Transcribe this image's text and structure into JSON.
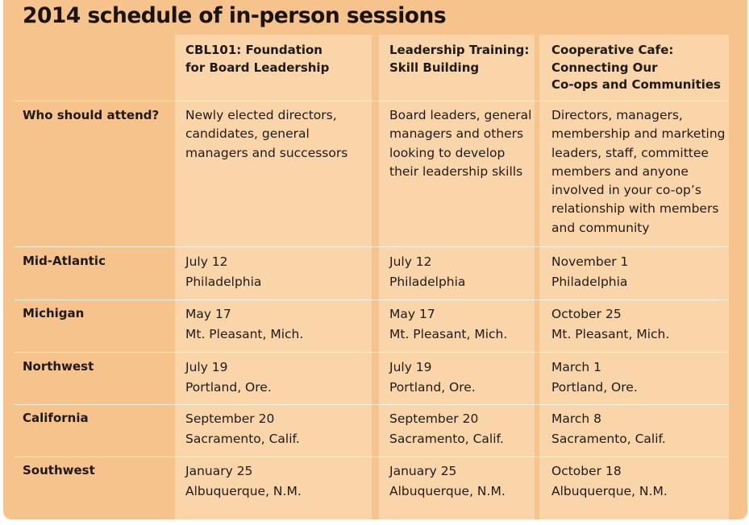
{
  "title": "2014 schedule of in-person sessions",
  "columns": [
    {
      "line1": "CBL101:  Foundation",
      "line2": "for Board Leadership",
      "line3": ""
    },
    {
      "line1": "Leadership Training:",
      "line2": "Skill Building",
      "line3": ""
    },
    {
      "line1": "Cooperative Cafe:",
      "line2": "Connecting Our",
      "line3": "Co-ops and Communities"
    }
  ],
  "who": {
    "label": "Who should attend?",
    "col1": [
      "Newly elected directors,",
      "candidates, general",
      "managers and successors"
    ],
    "col2": [
      "Board leaders, general",
      "managers and others",
      "looking to develop",
      "their leadership skills"
    ],
    "col3": [
      "Directors, managers,",
      "membership and marketing",
      "leaders, staff, committee",
      "members and anyone",
      "involved in your co-op’s",
      "relationship with members",
      "and community"
    ]
  },
  "rows": [
    {
      "region": "Mid-Atlantic",
      "c1": {
        "date": "July 12",
        "place": "Philadelphia"
      },
      "c2": {
        "date": "July 12",
        "place": "Philadelphia"
      },
      "c3": {
        "date": "November 1",
        "place": "Philadelphia"
      }
    },
    {
      "region": "Michigan",
      "c1": {
        "date": "May 17",
        "place": "Mt. Pleasant, Mich."
      },
      "c2": {
        "date": "May 17",
        "place": "Mt. Pleasant, Mich."
      },
      "c3": {
        "date": "October 25",
        "place": "Mt. Pleasant, Mich."
      }
    },
    {
      "region": "Northwest",
      "c1": {
        "date": "July 19",
        "place": "Portland, Ore."
      },
      "c2": {
        "date": "July 19",
        "place": "Portland, Ore."
      },
      "c3": {
        "date": "March 1",
        "place": "Portland, Ore."
      }
    },
    {
      "region": "California",
      "c1": {
        "date": "September 20",
        "place": "Sacramento, Calif."
      },
      "c2": {
        "date": "September 20",
        "place": "Sacramento, Calif."
      },
      "c3": {
        "date": "March 8",
        "place": "Sacramento, Calif."
      }
    },
    {
      "region": "Southwest",
      "c1": {
        "date": "January 25",
        "place": "Albuquerque, N.M."
      },
      "c2": {
        "date": "January 25",
        "place": "Albuquerque, N.M."
      },
      "c3": {
        "date": "October 18",
        "place": "Albuquerque, N.M."
      }
    }
  ]
}
